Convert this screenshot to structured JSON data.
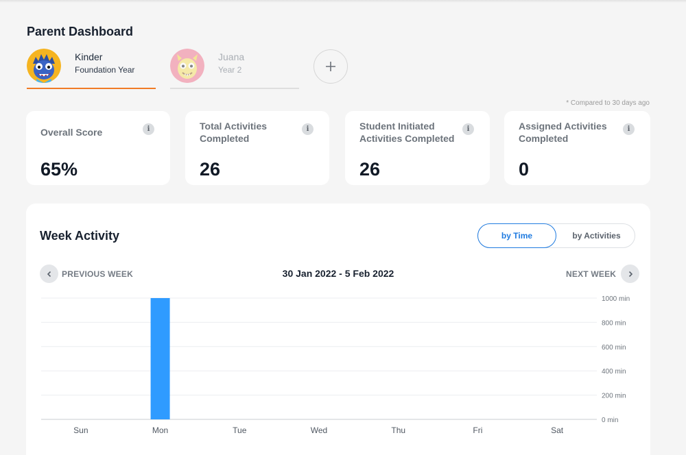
{
  "page_title": "Parent Dashboard",
  "children": [
    {
      "name": "Kinder",
      "year": "Foundation Year",
      "active": true,
      "avatar_icon": "blue-monster-avatar-icon",
      "avatar_bg": "#f5b421"
    },
    {
      "name": "Juana",
      "year": "Year 2",
      "active": false,
      "avatar_icon": "yellow-monster-avatar-icon",
      "avatar_bg": "#f07a93"
    }
  ],
  "add_child_icon": "plus-icon",
  "compare_note": "* Compared to 30 days ago",
  "stats": [
    {
      "label": "Overall Score",
      "value": "65%"
    },
    {
      "label": "Total Activities Completed",
      "value": "26"
    },
    {
      "label": "Student Initiated Activities Completed",
      "value": "26"
    },
    {
      "label": "Assigned Activities Completed",
      "value": "0"
    }
  ],
  "week_activity": {
    "title": "Week Activity",
    "toggle": {
      "by_time": "by Time",
      "by_activities": "by Activities",
      "selected": "by Time"
    },
    "previous_week": "PREVIOUS WEEK",
    "next_week": "NEXT WEEK",
    "date_range": "30 Jan 2022 - 5 Feb 2022"
  },
  "colors": {
    "accent": "#f07b25",
    "primary": "#1f7be0",
    "bar": "#2f9bff"
  },
  "chart_data": {
    "type": "bar",
    "categories": [
      "Sun",
      "Mon",
      "Tue",
      "Wed",
      "Thu",
      "Fri",
      "Sat"
    ],
    "values": [
      0,
      1000,
      0,
      0,
      0,
      0,
      0
    ],
    "ylim": [
      0,
      1000
    ],
    "yticks": [
      0,
      200,
      400,
      600,
      800,
      1000
    ],
    "ytick_labels": [
      "0 min",
      "200 min",
      "400 min",
      "600 min",
      "800 min",
      "1000 min"
    ],
    "grid": true,
    "y_axis_side": "right"
  }
}
